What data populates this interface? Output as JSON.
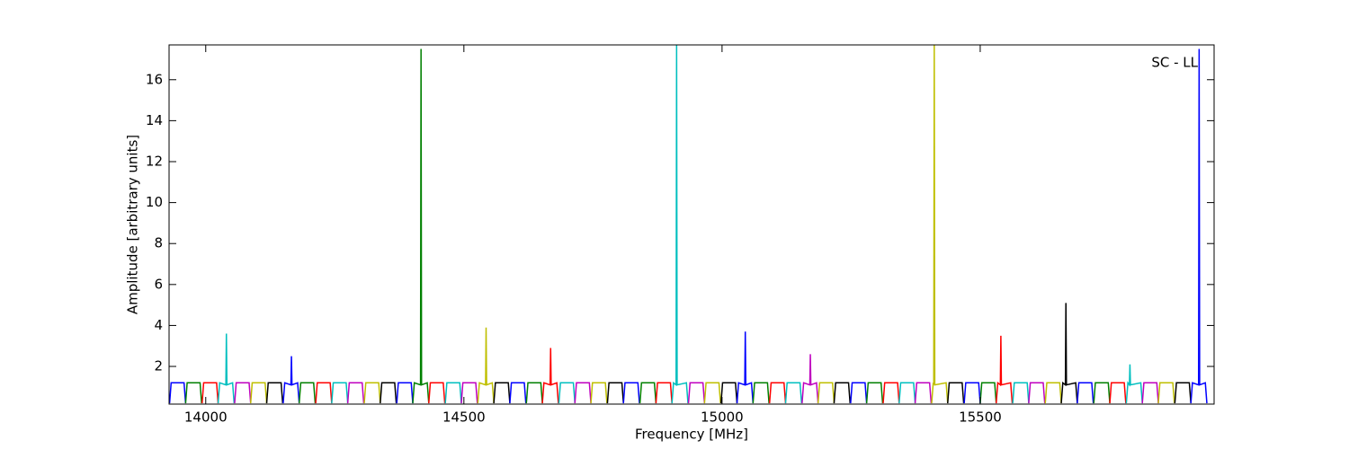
{
  "chart_data": {
    "type": "line",
    "annotation": "SC - LL",
    "x_label": "Frequency [MHz]",
    "y_label": "Amplitude [arbitrary units]",
    "xlim": [
      13929,
      15953
    ],
    "xticks": [
      14000,
      14500,
      15000,
      15500
    ],
    "ylim": [
      0.16,
      17.7
    ],
    "yticks": [
      2,
      4,
      6,
      8,
      10,
      12,
      14,
      16
    ],
    "grid": false,
    "series": [
      {
        "color": "#0000ff",
        "x": [
          13930,
          13933,
          13958,
          13961
        ],
        "values": [
          0.2,
          1.2,
          1.2,
          0.2
        ]
      },
      {
        "color": "#008000",
        "x": [
          13961,
          13964,
          13989,
          13992
        ],
        "values": [
          0.2,
          1.2,
          1.2,
          0.2
        ]
      },
      {
        "color": "#ff0000",
        "x": [
          13993,
          13996,
          14021,
          14024
        ],
        "values": [
          0.2,
          1.2,
          1.2,
          0.2
        ]
      },
      {
        "color": "#00bfbf",
        "x": [
          14024,
          14027,
          14039,
          14040,
          14041,
          14052,
          14055
        ],
        "values": [
          0.2,
          1.2,
          1.1,
          3.6,
          1.1,
          1.2,
          0.2
        ]
      },
      {
        "color": "#bf00bf",
        "x": [
          14056,
          14059,
          14084,
          14087
        ],
        "values": [
          0.2,
          1.2,
          1.2,
          0.2
        ]
      },
      {
        "color": "#bfbf00",
        "x": [
          14087,
          14090,
          14115,
          14118
        ],
        "values": [
          0.2,
          1.2,
          1.2,
          0.2
        ]
      },
      {
        "color": "#000000",
        "x": [
          14118,
          14121,
          14146,
          14149
        ],
        "values": [
          0.2,
          1.2,
          1.2,
          0.2
        ]
      },
      {
        "color": "#0000ff",
        "x": [
          14150,
          14153,
          14165,
          14166,
          14167,
          14178,
          14181
        ],
        "values": [
          0.2,
          1.2,
          1.1,
          2.5,
          1.1,
          1.2,
          0.2
        ]
      },
      {
        "color": "#008000",
        "x": [
          14181,
          14184,
          14209,
          14212
        ],
        "values": [
          0.2,
          1.2,
          1.2,
          0.2
        ]
      },
      {
        "color": "#ff0000",
        "x": [
          14213,
          14216,
          14241,
          14244
        ],
        "values": [
          0.2,
          1.2,
          1.2,
          0.2
        ]
      },
      {
        "color": "#00bfbf",
        "x": [
          14244,
          14247,
          14272,
          14275
        ],
        "values": [
          0.2,
          1.2,
          1.2,
          0.2
        ]
      },
      {
        "color": "#bf00bf",
        "x": [
          14275,
          14278,
          14303,
          14306
        ],
        "values": [
          0.2,
          1.2,
          1.2,
          0.2
        ]
      },
      {
        "color": "#bfbf00",
        "x": [
          14307,
          14310,
          14335,
          14338
        ],
        "values": [
          0.2,
          1.2,
          1.2,
          0.2
        ]
      },
      {
        "color": "#000000",
        "x": [
          14338,
          14341,
          14366,
          14369
        ],
        "values": [
          0.2,
          1.2,
          1.2,
          0.2
        ]
      },
      {
        "color": "#0000ff",
        "x": [
          14370,
          14373,
          14398,
          14401
        ],
        "values": [
          0.2,
          1.2,
          1.2,
          0.2
        ]
      },
      {
        "color": "#008000",
        "x": [
          14401,
          14404,
          14416,
          14417,
          14418,
          14429,
          14432
        ],
        "values": [
          0.2,
          1.2,
          1.1,
          17.5,
          1.1,
          1.2,
          0.2
        ]
      },
      {
        "color": "#ff0000",
        "x": [
          14432,
          14435,
          14460,
          14463
        ],
        "values": [
          0.2,
          1.2,
          1.2,
          0.2
        ]
      },
      {
        "color": "#00bfbf",
        "x": [
          14464,
          14467,
          14492,
          14495
        ],
        "values": [
          0.2,
          1.2,
          1.2,
          0.2
        ]
      },
      {
        "color": "#bf00bf",
        "x": [
          14495,
          14498,
          14523,
          14526
        ],
        "values": [
          0.2,
          1.2,
          1.2,
          0.2
        ]
      },
      {
        "color": "#bfbf00",
        "x": [
          14527,
          14530,
          14542,
          14543,
          14544,
          14555,
          14558
        ],
        "values": [
          0.2,
          1.2,
          1.1,
          3.9,
          1.1,
          1.2,
          0.2
        ]
      },
      {
        "color": "#000000",
        "x": [
          14558,
          14561,
          14586,
          14589
        ],
        "values": [
          0.2,
          1.2,
          1.2,
          0.2
        ]
      },
      {
        "color": "#0000ff",
        "x": [
          14589,
          14592,
          14617,
          14620
        ],
        "values": [
          0.2,
          1.2,
          1.2,
          0.2
        ]
      },
      {
        "color": "#008000",
        "x": [
          14621,
          14624,
          14649,
          14652
        ],
        "values": [
          0.2,
          1.2,
          1.2,
          0.2
        ]
      },
      {
        "color": "#ff0000",
        "x": [
          14652,
          14655,
          14667,
          14668,
          14669,
          14680,
          14683
        ],
        "values": [
          0.2,
          1.2,
          1.1,
          2.9,
          1.1,
          1.2,
          0.2
        ]
      },
      {
        "color": "#00bfbf",
        "x": [
          14684,
          14687,
          14712,
          14715
        ],
        "values": [
          0.2,
          1.2,
          1.2,
          0.2
        ]
      },
      {
        "color": "#bf00bf",
        "x": [
          14715,
          14718,
          14743,
          14746
        ],
        "values": [
          0.2,
          1.2,
          1.2,
          0.2
        ]
      },
      {
        "color": "#bfbf00",
        "x": [
          14746,
          14749,
          14774,
          14777
        ],
        "values": [
          0.2,
          1.2,
          1.2,
          0.2
        ]
      },
      {
        "color": "#000000",
        "x": [
          14778,
          14781,
          14806,
          14809
        ],
        "values": [
          0.2,
          1.2,
          1.2,
          0.2
        ]
      },
      {
        "color": "#0000ff",
        "x": [
          14809,
          14812,
          14837,
          14840
        ],
        "values": [
          0.2,
          1.2,
          1.2,
          0.2
        ]
      },
      {
        "color": "#008000",
        "x": [
          14841,
          14844,
          14869,
          14872
        ],
        "values": [
          0.2,
          1.2,
          1.2,
          0.2
        ]
      },
      {
        "color": "#ff0000",
        "x": [
          14872,
          14875,
          14900,
          14903
        ],
        "values": [
          0.2,
          1.2,
          1.2,
          0.2
        ]
      },
      {
        "color": "#00bfbf",
        "x": [
          14903,
          14906,
          14911,
          14912,
          14913,
          14931,
          14934
        ],
        "values": [
          0.2,
          1.2,
          1.1,
          17.7,
          1.1,
          1.2,
          0.2
        ]
      },
      {
        "color": "#bf00bf",
        "x": [
          14935,
          14938,
          14963,
          14966
        ],
        "values": [
          0.2,
          1.2,
          1.2,
          0.2
        ]
      },
      {
        "color": "#bfbf00",
        "x": [
          14966,
          14969,
          14994,
          14997
        ],
        "values": [
          0.2,
          1.2,
          1.2,
          0.2
        ]
      },
      {
        "color": "#000000",
        "x": [
          14998,
          15001,
          15026,
          15029
        ],
        "values": [
          0.2,
          1.2,
          1.2,
          0.2
        ]
      },
      {
        "color": "#0000ff",
        "x": [
          15029,
          15032,
          15044,
          15045,
          15046,
          15057,
          15060
        ],
        "values": [
          0.2,
          1.2,
          1.1,
          3.7,
          1.1,
          1.2,
          0.2
        ]
      },
      {
        "color": "#008000",
        "x": [
          15060,
          15063,
          15088,
          15091
        ],
        "values": [
          0.2,
          1.2,
          1.2,
          0.2
        ]
      },
      {
        "color": "#ff0000",
        "x": [
          15092,
          15095,
          15120,
          15123
        ],
        "values": [
          0.2,
          1.2,
          1.2,
          0.2
        ]
      },
      {
        "color": "#00bfbf",
        "x": [
          15123,
          15126,
          15151,
          15154
        ],
        "values": [
          0.2,
          1.2,
          1.2,
          0.2
        ]
      },
      {
        "color": "#bf00bf",
        "x": [
          15155,
          15158,
          15170,
          15171,
          15172,
          15183,
          15186
        ],
        "values": [
          0.2,
          1.2,
          1.1,
          2.6,
          1.1,
          1.2,
          0.2
        ]
      },
      {
        "color": "#bfbf00",
        "x": [
          15186,
          15189,
          15214,
          15217
        ],
        "values": [
          0.2,
          1.2,
          1.2,
          0.2
        ]
      },
      {
        "color": "#000000",
        "x": [
          15217,
          15220,
          15245,
          15248
        ],
        "values": [
          0.2,
          1.2,
          1.2,
          0.2
        ]
      },
      {
        "color": "#0000ff",
        "x": [
          15249,
          15252,
          15277,
          15280
        ],
        "values": [
          0.2,
          1.2,
          1.2,
          0.2
        ]
      },
      {
        "color": "#008000",
        "x": [
          15280,
          15283,
          15308,
          15311
        ],
        "values": [
          0.2,
          1.2,
          1.2,
          0.2
        ]
      },
      {
        "color": "#ff0000",
        "x": [
          15312,
          15315,
          15340,
          15343
        ],
        "values": [
          0.2,
          1.2,
          1.2,
          0.2
        ]
      },
      {
        "color": "#00bfbf",
        "x": [
          15343,
          15346,
          15371,
          15374
        ],
        "values": [
          0.2,
          1.2,
          1.2,
          0.2
        ]
      },
      {
        "color": "#bf00bf",
        "x": [
          15374,
          15377,
          15402,
          15405
        ],
        "values": [
          0.2,
          1.2,
          1.2,
          0.2
        ]
      },
      {
        "color": "#bfbf00",
        "x": [
          15406,
          15409,
          15410,
          15411,
          15412,
          15434,
          15437
        ],
        "values": [
          0.2,
          1.2,
          1.1,
          17.7,
          1.1,
          1.2,
          0.2
        ]
      },
      {
        "color": "#000000",
        "x": [
          15437,
          15440,
          15465,
          15468
        ],
        "values": [
          0.2,
          1.2,
          1.2,
          0.2
        ]
      },
      {
        "color": "#0000ff",
        "x": [
          15469,
          15472,
          15497,
          15500
        ],
        "values": [
          0.2,
          1.2,
          1.2,
          0.2
        ]
      },
      {
        "color": "#008000",
        "x": [
          15500,
          15503,
          15528,
          15531
        ],
        "values": [
          0.2,
          1.2,
          1.2,
          0.2
        ]
      },
      {
        "color": "#ff0000",
        "x": [
          15531,
          15534,
          15539,
          15540,
          15541,
          15559,
          15562
        ],
        "values": [
          0.2,
          1.2,
          1.1,
          3.5,
          1.1,
          1.2,
          0.2
        ]
      },
      {
        "color": "#00bfbf",
        "x": [
          15563,
          15566,
          15591,
          15594
        ],
        "values": [
          0.2,
          1.2,
          1.2,
          0.2
        ]
      },
      {
        "color": "#bf00bf",
        "x": [
          15594,
          15597,
          15622,
          15625
        ],
        "values": [
          0.2,
          1.2,
          1.2,
          0.2
        ]
      },
      {
        "color": "#bfbf00",
        "x": [
          15626,
          15629,
          15654,
          15657
        ],
        "values": [
          0.2,
          1.2,
          1.2,
          0.2
        ]
      },
      {
        "color": "#000000",
        "x": [
          15657,
          15660,
          15665,
          15666,
          15667,
          15685,
          15688
        ],
        "values": [
          0.2,
          1.2,
          1.1,
          5.1,
          1.1,
          1.2,
          0.2
        ]
      },
      {
        "color": "#0000ff",
        "x": [
          15688,
          15691,
          15716,
          15719
        ],
        "values": [
          0.2,
          1.2,
          1.2,
          0.2
        ]
      },
      {
        "color": "#008000",
        "x": [
          15720,
          15723,
          15748,
          15751
        ],
        "values": [
          0.2,
          1.2,
          1.2,
          0.2
        ]
      },
      {
        "color": "#ff0000",
        "x": [
          15751,
          15754,
          15779,
          15782
        ],
        "values": [
          0.2,
          1.2,
          1.2,
          0.2
        ]
      },
      {
        "color": "#00bfbf",
        "x": [
          15783,
          15786,
          15789,
          15790,
          15791,
          15811,
          15814
        ],
        "values": [
          0.2,
          1.2,
          1.1,
          2.1,
          1.1,
          1.2,
          0.2
        ]
      },
      {
        "color": "#bf00bf",
        "x": [
          15814,
          15817,
          15842,
          15845
        ],
        "values": [
          0.2,
          1.2,
          1.2,
          0.2
        ]
      },
      {
        "color": "#bfbf00",
        "x": [
          15845,
          15848,
          15873,
          15876
        ],
        "values": [
          0.2,
          1.2,
          1.2,
          0.2
        ]
      },
      {
        "color": "#000000",
        "x": [
          15877,
          15880,
          15905,
          15908
        ],
        "values": [
          0.2,
          1.2,
          1.2,
          0.2
        ]
      },
      {
        "color": "#0000ff",
        "x": [
          15908,
          15911,
          15923,
          15924,
          15925,
          15936,
          15939
        ],
        "values": [
          0.2,
          1.2,
          1.1,
          17.5,
          1.1,
          1.2,
          0.2
        ]
      }
    ]
  }
}
